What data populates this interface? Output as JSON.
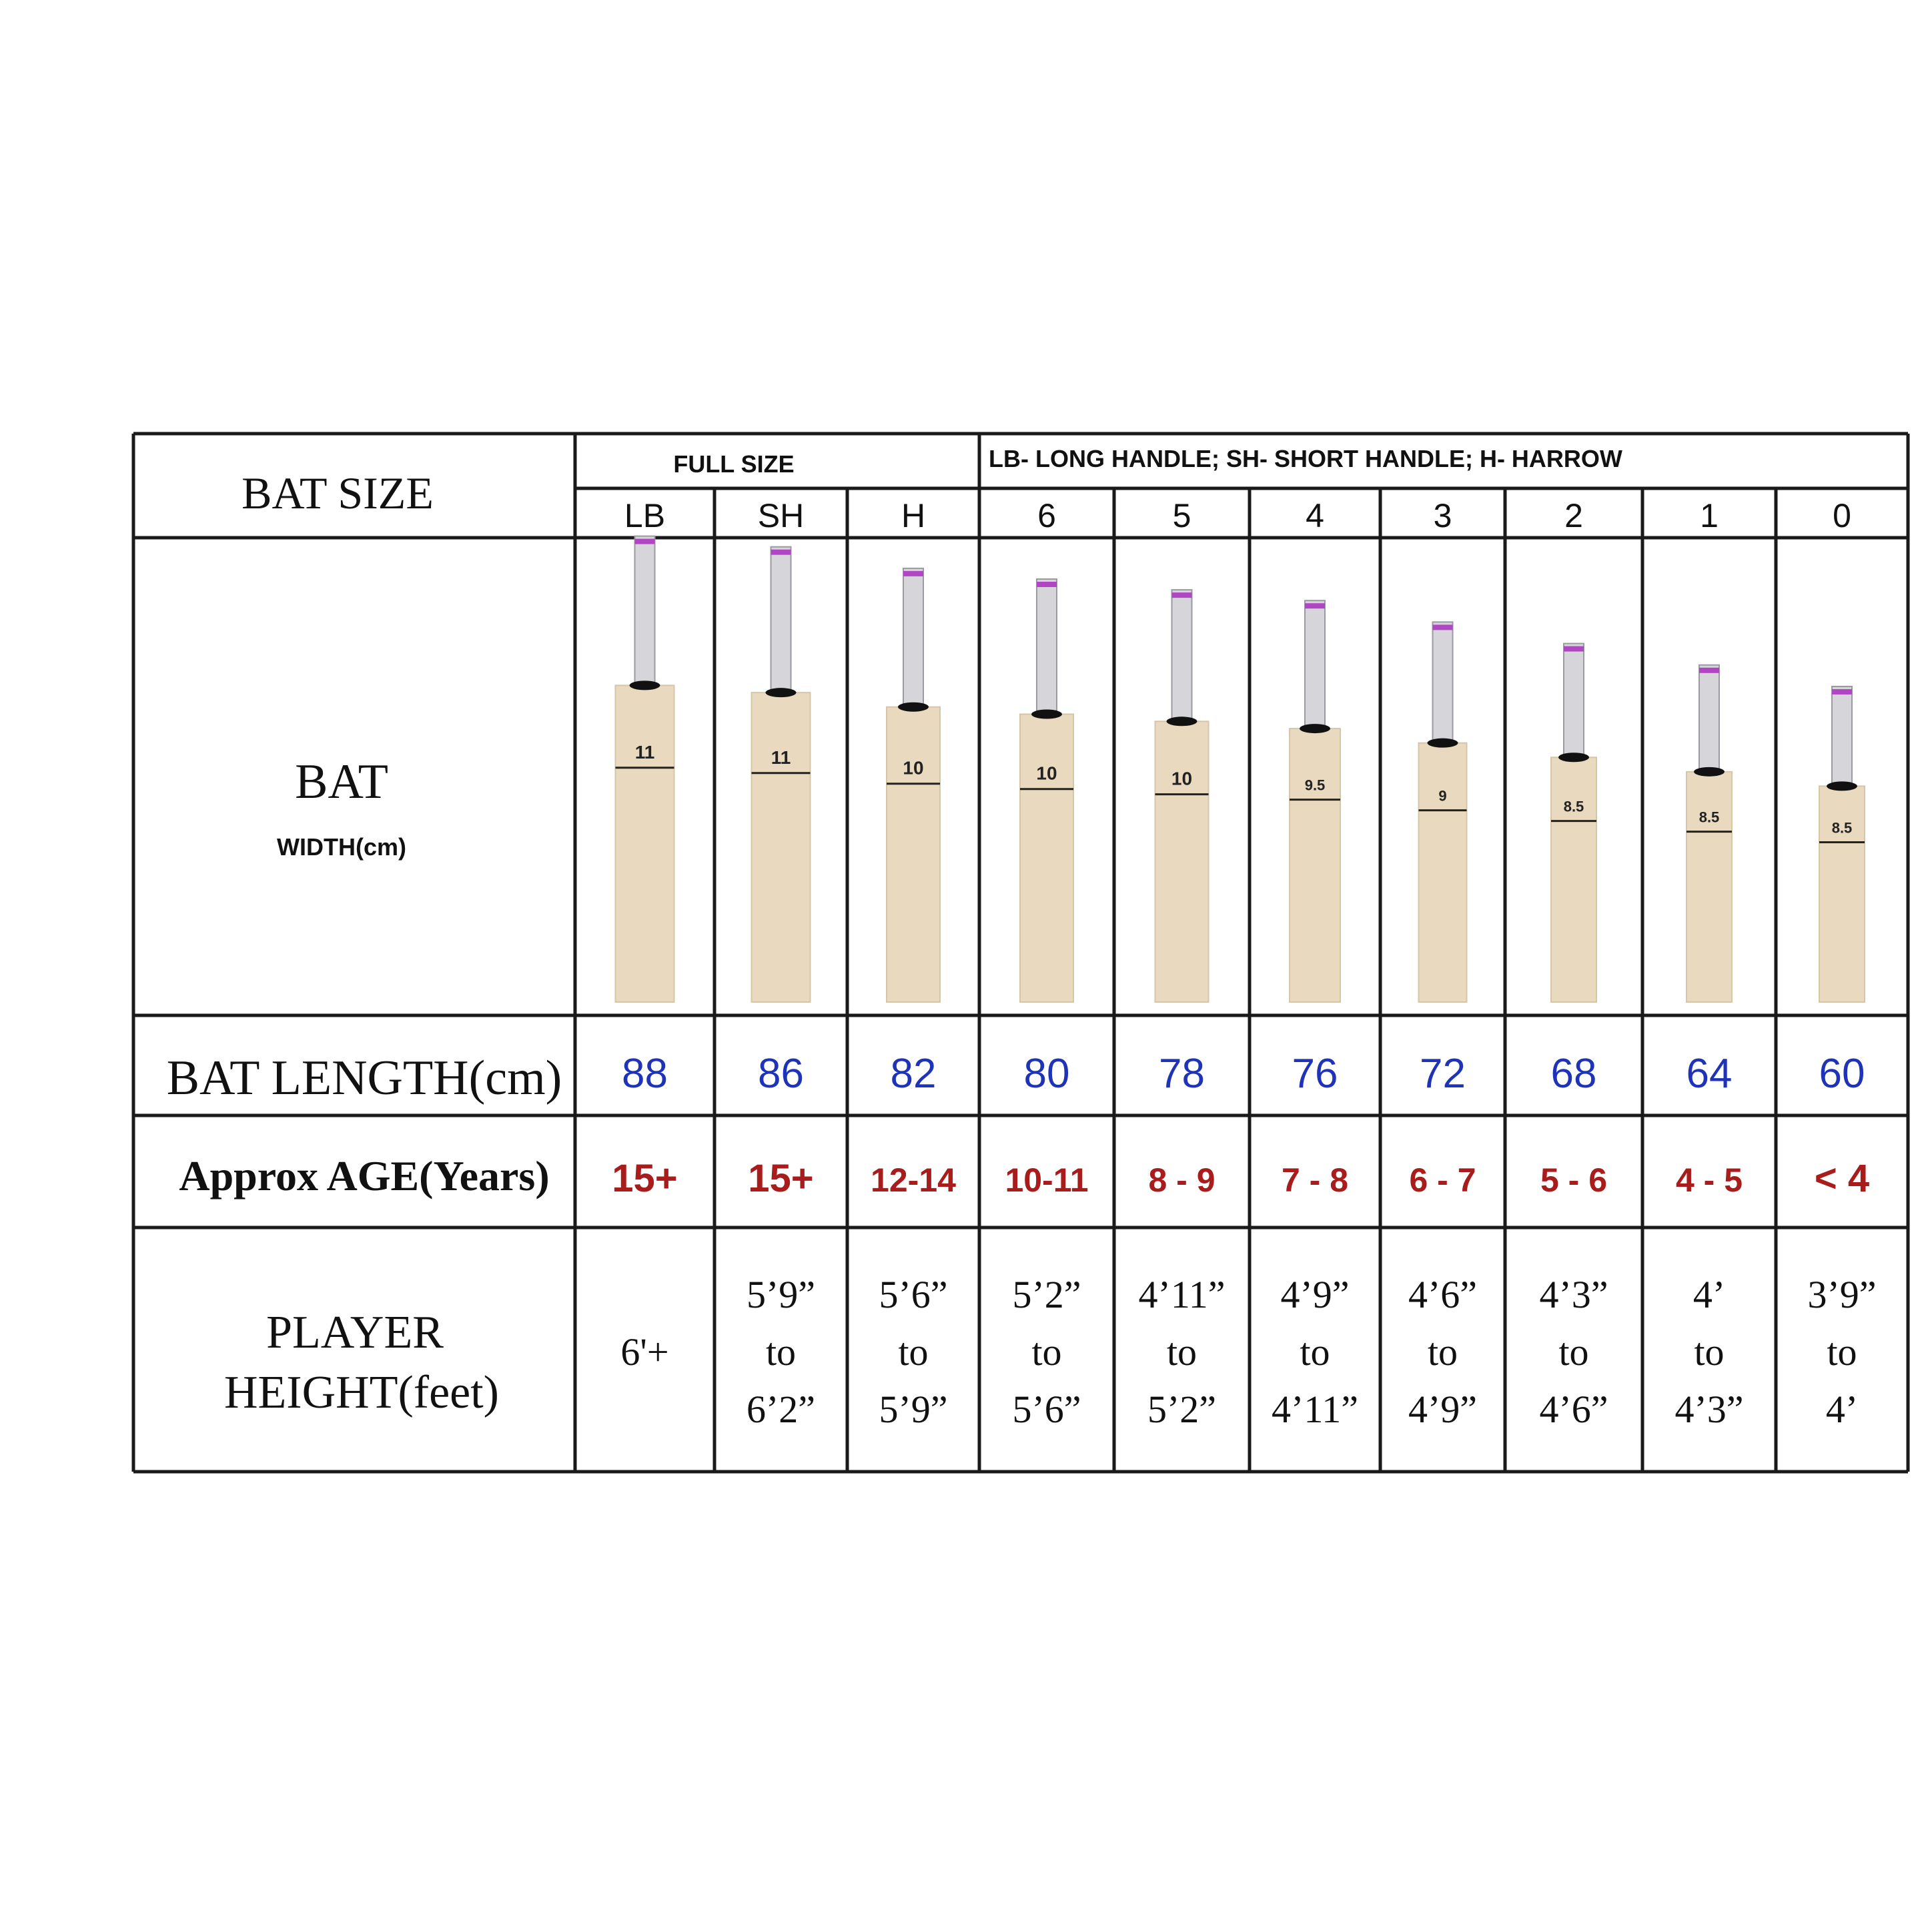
{
  "header": {
    "bat_size_label": "BAT SIZE",
    "full_size_label": "FULL SIZE",
    "legend": "LB- LONG HANDLE; SH- SHORT HANDLE; H- HARROW"
  },
  "rows": {
    "bat": "BAT",
    "width_label": "WIDTH(cm)",
    "length_label": "BAT LENGTH(cm)",
    "age_label": "Approx AGE(Years)",
    "height_label_1": "PLAYER",
    "height_label_2": "HEIGHT(feet)"
  },
  "colors": {
    "length_text": "#1f33b8",
    "age_text": "#a81c1c",
    "blade": "#e8d9bf",
    "grip": "#d6d6da",
    "grip_band": "#b146c4"
  },
  "sizes": [
    {
      "size": "LB",
      "width": "11",
      "width_value": 11,
      "length": "88",
      "length_value": 88,
      "age": "15+",
      "height": [
        "6'+"
      ]
    },
    {
      "size": "SH",
      "width": "11",
      "width_value": 11,
      "length": "86",
      "length_value": 86,
      "age": "15+",
      "height": [
        "5’9”",
        "to",
        "6’2”"
      ]
    },
    {
      "size": "H",
      "width": "10",
      "width_value": 10,
      "length": "82",
      "length_value": 82,
      "age": "12-14",
      "height": [
        "5’6”",
        "to",
        "5’9”"
      ]
    },
    {
      "size": "6",
      "width": "10",
      "width_value": 10,
      "length": "80",
      "length_value": 80,
      "age": "10-11",
      "height": [
        "5’2”",
        "to",
        "5’6”"
      ]
    },
    {
      "size": "5",
      "width": "10",
      "width_value": 10,
      "length": "78",
      "length_value": 78,
      "age": "8 - 9",
      "height": [
        "4’11”",
        "to",
        "5’2”"
      ]
    },
    {
      "size": "4",
      "width": "9.5",
      "width_value": 9.5,
      "length": "76",
      "length_value": 76,
      "age": "7 - 8",
      "height": [
        "4’9”",
        "to",
        "4’11”"
      ]
    },
    {
      "size": "3",
      "width": "9",
      "width_value": 9,
      "length": "72",
      "length_value": 72,
      "age": "6 - 7",
      "height": [
        "4’6”",
        "to",
        "4’9”"
      ]
    },
    {
      "size": "2",
      "width": "8.5",
      "width_value": 8.5,
      "length": "68",
      "length_value": 68,
      "age": "5 - 6",
      "height": [
        "4’3”",
        "to",
        "4’6”"
      ]
    },
    {
      "size": "1",
      "width": "8.5",
      "width_value": 8.5,
      "length": "64",
      "length_value": 64,
      "age": "4 - 5",
      "height": [
        "4’",
        "to",
        "4’3”"
      ]
    },
    {
      "size": "0",
      "width": "8.5",
      "width_value": 8.5,
      "length": "60",
      "length_value": 60,
      "age": "< 4",
      "height": [
        "3’9”",
        "to",
        "4’"
      ]
    }
  ]
}
